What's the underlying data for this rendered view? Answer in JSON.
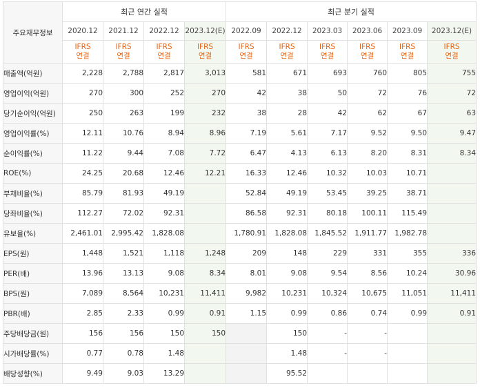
{
  "header": {
    "row_label": "주요재무정보",
    "annual_title": "최근 연간 실적",
    "quarter_title": "최근 분기 실적",
    "periods": [
      "2020.12",
      "2021.12",
      "2022.12",
      "2023.12(E)",
      "2022.09",
      "2022.12",
      "2023.03",
      "2023.06",
      "2023.09",
      "2023.12(E)"
    ],
    "std_top": "IFRS",
    "std_bottom": "연결"
  },
  "rows": [
    {
      "label": "매출액(억원)",
      "values": [
        "2,228",
        "2,788",
        "2,817",
        "3,013",
        "581",
        "671",
        "693",
        "760",
        "805",
        "755"
      ]
    },
    {
      "label": "영업이익(억원)",
      "values": [
        "270",
        "300",
        "252",
        "270",
        "42",
        "38",
        "50",
        "72",
        "76",
        "72"
      ]
    },
    {
      "label": "당기순이익(억원)",
      "values": [
        "250",
        "263",
        "199",
        "232",
        "38",
        "28",
        "42",
        "62",
        "67",
        "63"
      ]
    },
    {
      "label": "영업이익률(%)",
      "values": [
        "12.11",
        "10.76",
        "8.94",
        "8.96",
        "7.19",
        "5.61",
        "7.17",
        "9.52",
        "9.50",
        "9.47"
      ]
    },
    {
      "label": "순이익률(%)",
      "values": [
        "11.22",
        "9.44",
        "7.08",
        "7.72",
        "6.47",
        "4.13",
        "6.13",
        "8.20",
        "8.31",
        "8.34"
      ]
    },
    {
      "label": "ROE(%)",
      "values": [
        "24.25",
        "20.68",
        "12.46",
        "12.21",
        "16.33",
        "12.46",
        "10.32",
        "10.03",
        "10.71",
        ""
      ]
    },
    {
      "label": "부채비율(%)",
      "values": [
        "85.79",
        "81.93",
        "49.19",
        "",
        "52.84",
        "49.19",
        "53.45",
        "39.25",
        "38.71",
        ""
      ]
    },
    {
      "label": "당좌비율(%)",
      "values": [
        "112.27",
        "72.02",
        "92.31",
        "",
        "86.58",
        "92.31",
        "80.18",
        "100.11",
        "115.49",
        ""
      ]
    },
    {
      "label": "유보율(%)",
      "values": [
        "2,461.01",
        "2,995.42",
        "1,828.08",
        "",
        "1,780.91",
        "1,828.08",
        "1,845.52",
        "1,911.77",
        "1,982.78",
        ""
      ]
    },
    {
      "label": "EPS(원)",
      "values": [
        "1,448",
        "1,521",
        "1,118",
        "1,248",
        "209",
        "148",
        "229",
        "331",
        "355",
        "336"
      ]
    },
    {
      "label": "PER(배)",
      "values": [
        "13.96",
        "13.13",
        "9.08",
        "8.34",
        "8.01",
        "9.08",
        "9.54",
        "8.56",
        "10.24",
        "30.96"
      ]
    },
    {
      "label": "BPS(원)",
      "values": [
        "7,089",
        "8,564",
        "10,231",
        "11,411",
        "9,982",
        "10,231",
        "10,324",
        "10,675",
        "11,051",
        "11,411"
      ]
    },
    {
      "label": "PBR(배)",
      "values": [
        "2.85",
        "2.33",
        "0.99",
        "0.91",
        "1.15",
        "0.99",
        "0.86",
        "0.74",
        "0.99",
        "0.91"
      ]
    },
    {
      "label": "주당배당금(원)",
      "values": [
        "156",
        "156",
        "150",
        "150",
        "",
        "150",
        "-",
        "-",
        "",
        ""
      ]
    },
    {
      "label": "시가배당률(%)",
      "values": [
        "0.77",
        "0.78",
        "1.48",
        "",
        "",
        "1.48",
        "-",
        "-",
        "",
        ""
      ]
    },
    {
      "label": "배당성향(%)",
      "values": [
        "9.49",
        "9.03",
        "13.29",
        "",
        "",
        "95.52",
        "",
        "",
        "",
        ""
      ]
    }
  ],
  "colors": {
    "estimate_bg": "#f2f8ef",
    "ifrs_text": "#e8620f",
    "label_bg": "#f7f7f7",
    "missing_bg": "#f3f3f3"
  }
}
